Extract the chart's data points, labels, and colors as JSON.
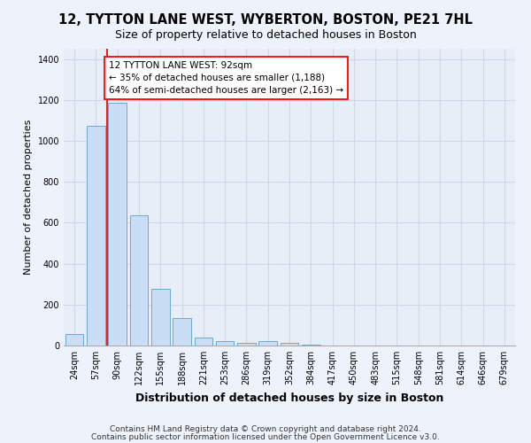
{
  "title": "12, TYTTON LANE WEST, WYBERTON, BOSTON, PE21 7HL",
  "subtitle": "Size of property relative to detached houses in Boston",
  "xlabel": "Distribution of detached houses by size in Boston",
  "ylabel": "Number of detached properties",
  "categories": [
    "24sqm",
    "57sqm",
    "90sqm",
    "122sqm",
    "155sqm",
    "188sqm",
    "221sqm",
    "253sqm",
    "286sqm",
    "319sqm",
    "352sqm",
    "384sqm",
    "417sqm",
    "450sqm",
    "483sqm",
    "515sqm",
    "548sqm",
    "581sqm",
    "614sqm",
    "646sqm",
    "679sqm"
  ],
  "values": [
    57,
    1072,
    1188,
    635,
    278,
    133,
    40,
    20,
    15,
    20,
    12,
    5,
    0,
    0,
    0,
    0,
    0,
    0,
    0,
    0,
    0
  ],
  "bar_color": "#c9ddf5",
  "bar_edgecolor": "#6aaad4",
  "redline_x": 1.5,
  "annotation_text": "12 TYTTON LANE WEST: 92sqm\n← 35% of detached houses are smaller (1,188)\n64% of semi-detached houses are larger (2,163) →",
  "ylim": [
    0,
    1450
  ],
  "yticks": [
    0,
    200,
    400,
    600,
    800,
    1000,
    1200,
    1400
  ],
  "footer_line1": "Contains HM Land Registry data © Crown copyright and database right 2024.",
  "footer_line2": "Contains public sector information licensed under the Open Government Licence v3.0.",
  "bg_color": "#eef2fa",
  "plot_bg_color": "#e8eef8",
  "grid_color": "#d0d8e8",
  "title_fontsize": 10.5,
  "subtitle_fontsize": 9,
  "tick_fontsize": 7,
  "footer_fontsize": 6.5,
  "ylabel_fontsize": 8,
  "xlabel_fontsize": 9
}
